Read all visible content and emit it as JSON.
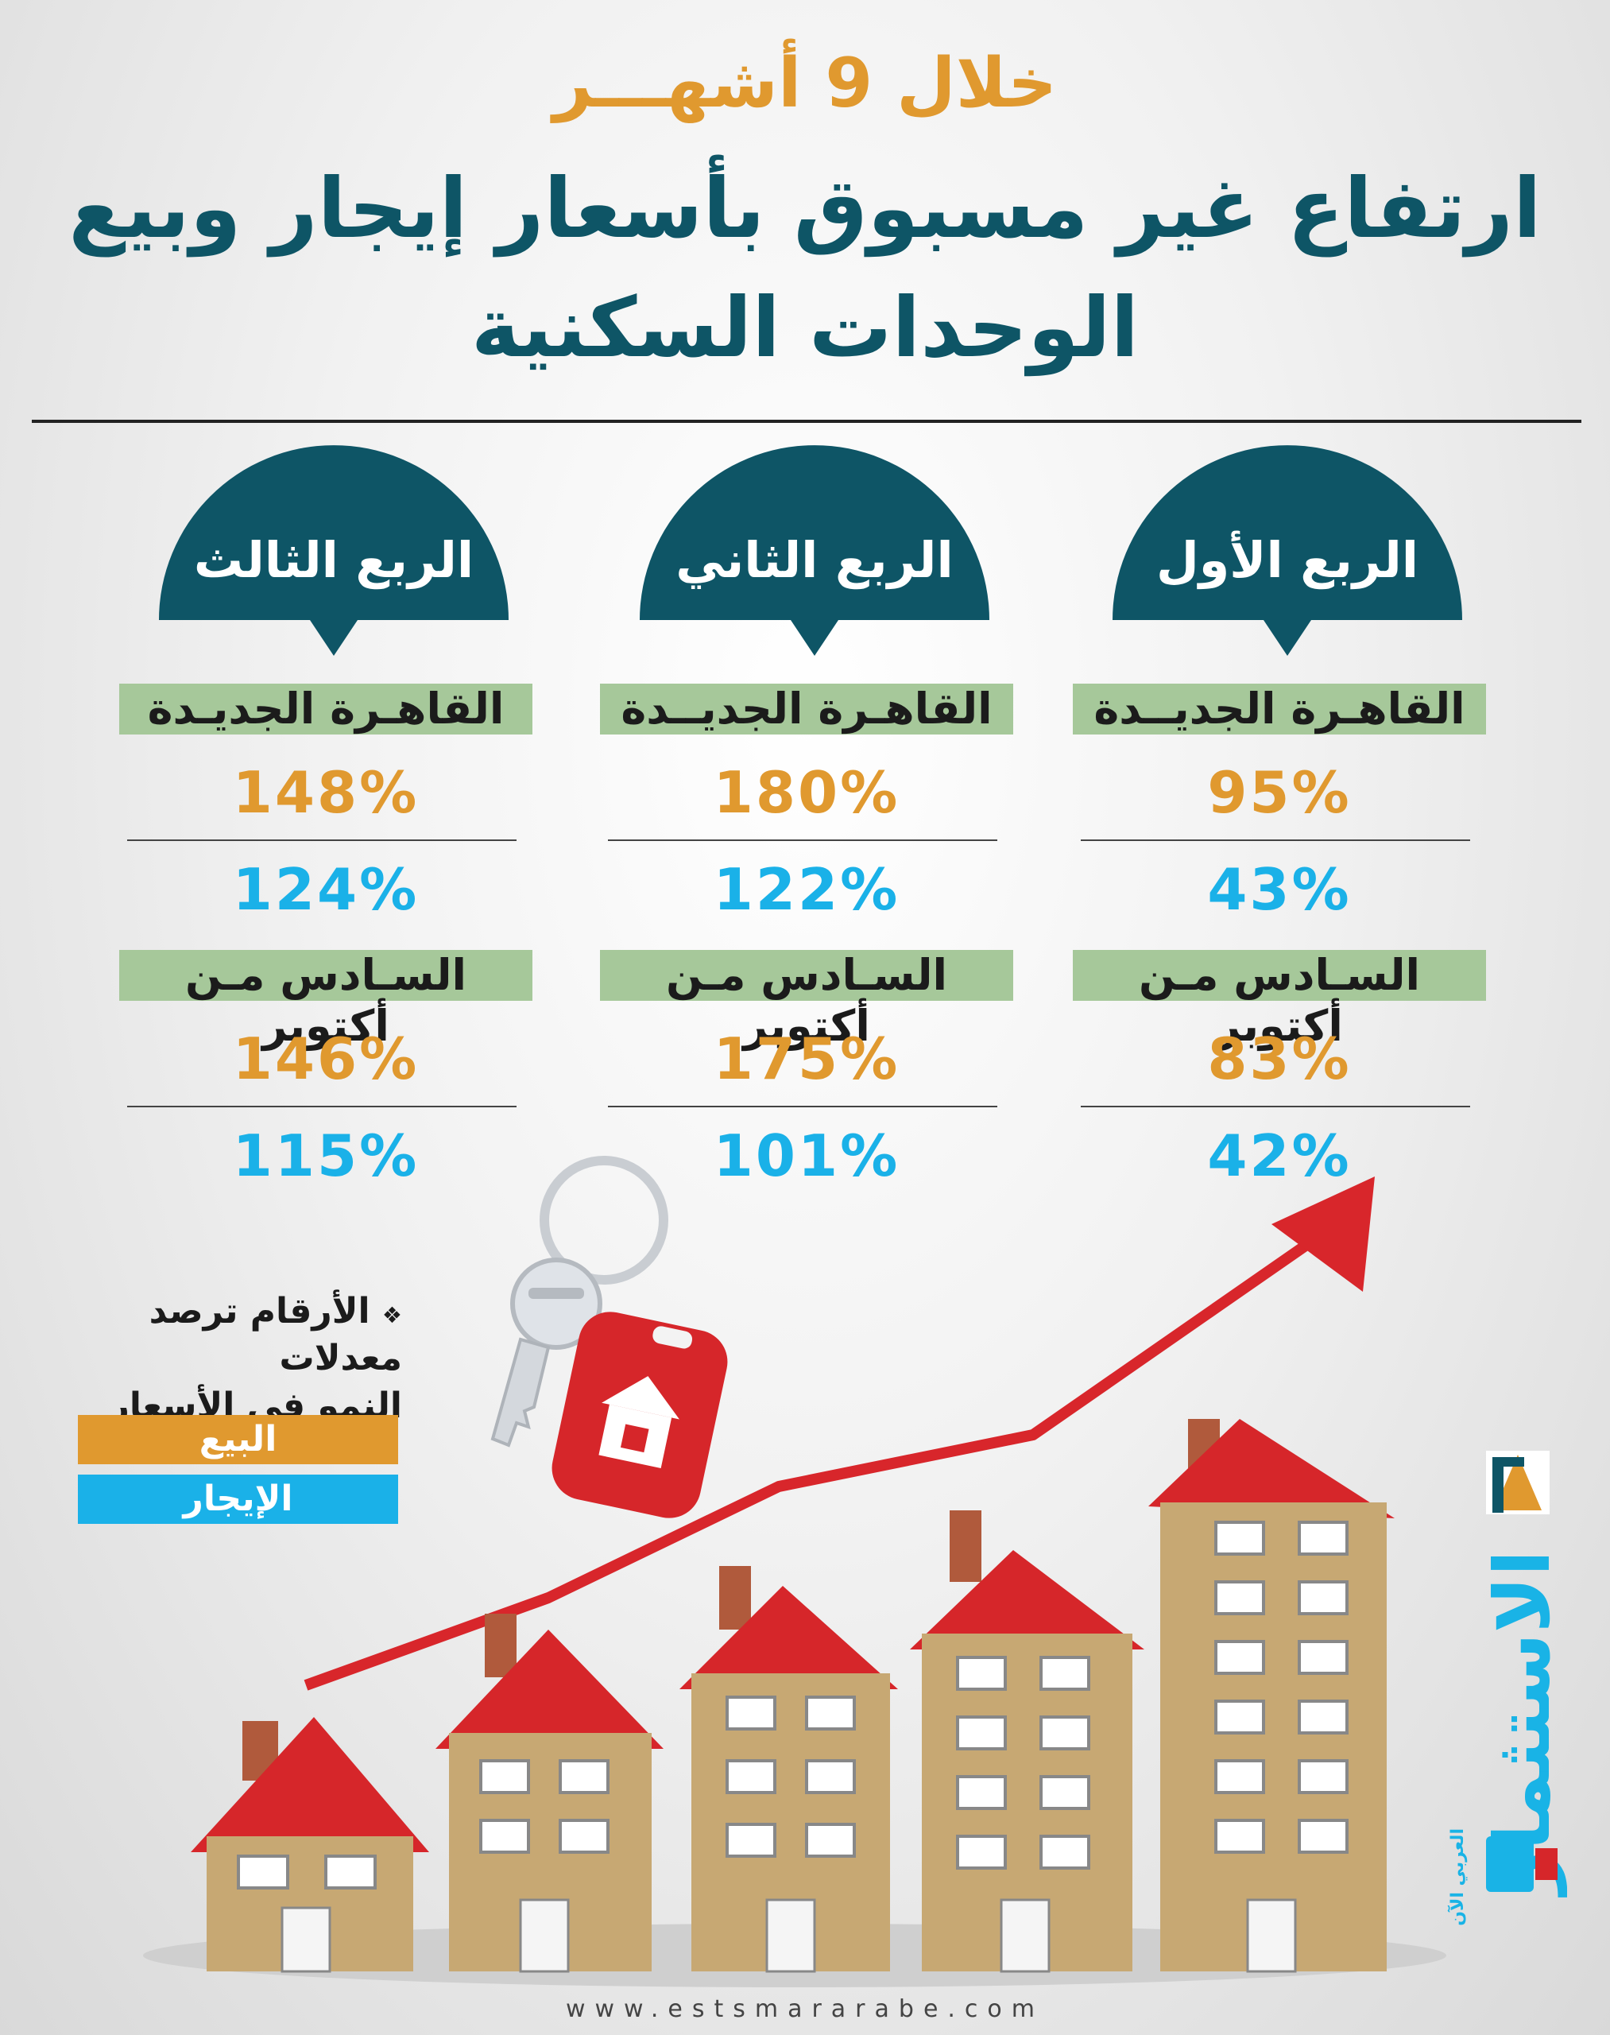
{
  "header": {
    "subtitle": "خلال 9 أشهـــر",
    "title_line1": "ارتفاع غير مسبوق بأسعار إيجار وبيع",
    "title_line2": "الوحدات السكنية"
  },
  "quarters": [
    {
      "label": "الربع الأول",
      "cities": [
        {
          "name": "القاهـرة الجديــدة",
          "sale": "95%",
          "rent": "43%"
        },
        {
          "name": "السـادس مـن أكتوبر",
          "sale": "83%",
          "rent": "42%"
        }
      ]
    },
    {
      "label": "الربع الثاني",
      "cities": [
        {
          "name": "القاهـرة الجديــدة",
          "sale": "180%",
          "rent": "122%"
        },
        {
          "name": "السـادس مـن أكتوبر",
          "sale": "175%",
          "rent": "101%"
        }
      ]
    },
    {
      "label": "الربع الثالث",
      "cities": [
        {
          "name": "القاهـرة الجديـدة",
          "sale": "148%",
          "rent": "124%"
        },
        {
          "name": "السـادس مـن أكتوبر",
          "sale": "146%",
          "rent": "115%"
        }
      ]
    }
  ],
  "note": {
    "bullet": "❖",
    "line1": "الأرقام ترصد معدلات",
    "line2": "النمو في الأسعار"
  },
  "legend": {
    "sale_label": "البيع",
    "rent_label": "الإيجار",
    "sale_color": "#e0992f",
    "rent_color": "#1ab1e8"
  },
  "brand": {
    "name": "الاستثمار",
    "tagline": "العربي الآن"
  },
  "footer": {
    "website": "www.estsmararabe.com"
  },
  "colors": {
    "teal": "#0e5566",
    "orange": "#e0992f",
    "blue": "#1ab1e8",
    "green_band": "#a6c89a",
    "arrow_red": "#d8262b"
  },
  "icons": [
    "house-key-icon",
    "growth-arrow-icon",
    "buildings-illustration"
  ]
}
